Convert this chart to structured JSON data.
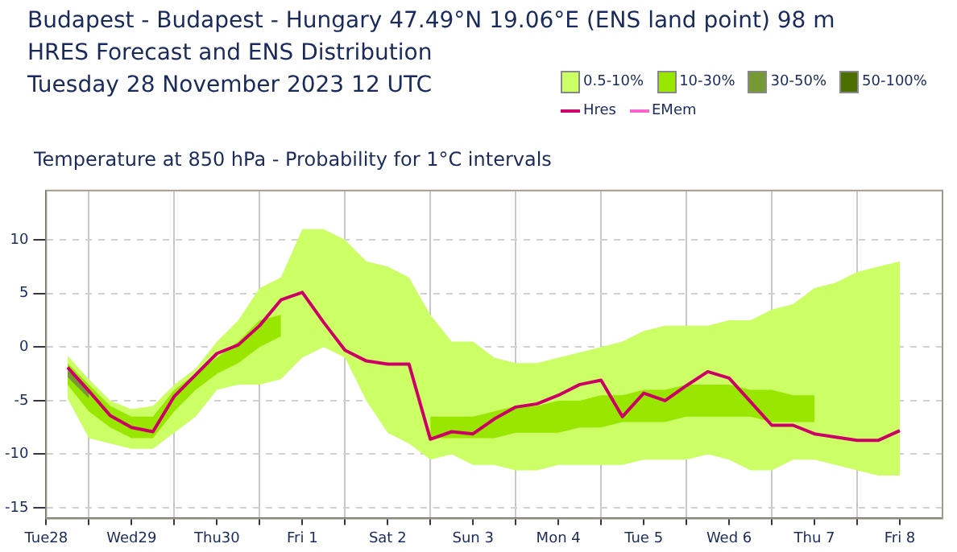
{
  "chart_data": {
    "type": "line",
    "title": "Budapest - Budapest - Hungary 47.49°N 19.06°E (ENS land point) 98 m\nHRES Forecast and ENS Distribution\nTuesday 28 November 2023 12 UTC",
    "subtitle": "Temperature at 850 hPa - Probability for 1°C intervals",
    "x": [
      "2023-11-28T18:00",
      "2023-11-29T00:00",
      "2023-11-29T06:00",
      "2023-11-29T12:00",
      "2023-11-29T18:00",
      "2023-11-30T00:00",
      "2023-11-30T06:00",
      "2023-11-30T12:00",
      "2023-11-30T18:00",
      "2023-12-01T00:00",
      "2023-12-01T06:00",
      "2023-12-01T12:00",
      "2023-12-01T18:00",
      "2023-12-02T00:00",
      "2023-12-02T06:00",
      "2023-12-02T12:00",
      "2023-12-02T18:00",
      "2023-12-03T00:00",
      "2023-12-03T06:00",
      "2023-12-03T12:00",
      "2023-12-03T18:00",
      "2023-12-04T00:00",
      "2023-12-04T06:00",
      "2023-12-04T12:00",
      "2023-12-04T18:00",
      "2023-12-05T00:00",
      "2023-12-05T06:00",
      "2023-12-05T12:00",
      "2023-12-05T18:00",
      "2023-12-06T00:00",
      "2023-12-06T06:00",
      "2023-12-06T12:00",
      "2023-12-06T18:00",
      "2023-12-07T00:00",
      "2023-12-07T06:00",
      "2023-12-07T12:00",
      "2023-12-07T18:00",
      "2023-12-08T00:00",
      "2023-12-08T06:00",
      "2023-12-08T12:00"
    ],
    "series": [
      {
        "name": "0.5-10%",
        "type": "area",
        "color": "#ccff66",
        "values": [
          null,
          null,
          null,
          null,
          null,
          null,
          null,
          null,
          null,
          null,
          null,
          null,
          null,
          null,
          null,
          null,
          null,
          null,
          null,
          null,
          null,
          null,
          null,
          null,
          null,
          null,
          null,
          null,
          null,
          null,
          null,
          null,
          null,
          null,
          null,
          null,
          null,
          null,
          null,
          null
        ],
        "upper": [
          -0.8,
          -3,
          -5,
          -5.8,
          -5.5,
          -3.5,
          -2,
          0.5,
          2.5,
          5.5,
          6.5,
          11,
          11,
          10,
          8,
          7.5,
          6.5,
          3,
          0.5,
          0.5,
          -1,
          -1.5,
          -1.5,
          -1,
          -0.5,
          0,
          0.5,
          1.5,
          2,
          2,
          2,
          2.5,
          2.5,
          3.5,
          4,
          5.5,
          6,
          7,
          7.5,
          8
        ],
        "lower": [
          -4.8,
          -8.5,
          -9,
          -9.5,
          -9.5,
          -8,
          -6.5,
          -4,
          -3.5,
          -3.5,
          -3,
          -1,
          0,
          -1,
          -5,
          -8,
          -9,
          -10.5,
          -10,
          -11,
          -11,
          -11.5,
          -11.5,
          -11,
          -11,
          -11,
          -11,
          -10.5,
          -10.5,
          -10.5,
          -10,
          -10.5,
          -11.5,
          -11.5,
          -10.5,
          -10.5,
          -11,
          -11.5,
          -12,
          -12
        ]
      },
      {
        "name": "10-30%",
        "type": "area",
        "color": "#99e600",
        "values": [
          null,
          null,
          null,
          null,
          null,
          null,
          null,
          null,
          null,
          null,
          null,
          null,
          null,
          null,
          null,
          null,
          null,
          null,
          null,
          null,
          null,
          null,
          null,
          null,
          null,
          null,
          null,
          null,
          null,
          null,
          null,
          null,
          null,
          null,
          null,
          null,
          null,
          null,
          null,
          null
        ],
        "upper": [
          -1.5,
          -3.5,
          -5.5,
          -6.5,
          -6.5,
          -4,
          -2.5,
          -1,
          0.5,
          2.5,
          3,
          null,
          null,
          null,
          null,
          null,
          null,
          -6.5,
          -6.5,
          -6.5,
          -6,
          -5.5,
          -5.5,
          -5,
          -5,
          -4.5,
          -4.5,
          -4,
          -4,
          -3.5,
          -3.5,
          -3.5,
          -4,
          -4,
          -4.5,
          -4.5,
          null,
          null,
          null,
          null
        ],
        "lower": [
          -3.5,
          -6,
          -7.5,
          -8.5,
          -8.5,
          -6,
          -4,
          -2.5,
          -1.5,
          0,
          1,
          null,
          null,
          null,
          null,
          null,
          null,
          -8.5,
          -8.5,
          -8.5,
          -8.5,
          -8,
          -8,
          -8,
          -7.5,
          -7.5,
          -7,
          -7,
          -7,
          -6.5,
          -6.5,
          -6.5,
          -6.5,
          -7,
          -7,
          -7,
          null,
          null,
          null,
          null
        ]
      },
      {
        "name": "30-50%",
        "type": "area",
        "color": "#779933",
        "values": [
          null,
          null,
          null,
          null,
          null,
          null,
          null,
          null,
          null,
          null,
          null,
          null,
          null,
          null,
          null,
          null,
          null,
          null,
          null,
          null,
          null,
          null,
          null,
          null,
          null,
          null,
          null,
          null,
          null,
          null,
          null,
          null,
          null,
          null,
          null,
          null,
          null,
          null,
          null,
          null
        ],
        "upper": [
          -2.2,
          -4,
          null,
          null,
          null,
          null,
          null,
          null,
          null,
          null,
          null,
          null,
          null,
          null,
          null,
          null,
          null,
          null,
          null,
          null,
          null,
          null,
          null,
          null,
          null,
          null,
          null,
          null,
          null,
          null,
          null,
          null,
          null,
          null,
          null,
          null,
          null,
          null,
          null,
          null
        ],
        "lower": [
          -2.8,
          -4.8,
          null,
          null,
          null,
          null,
          null,
          null,
          null,
          null,
          null,
          null,
          null,
          null,
          null,
          null,
          null,
          null,
          null,
          null,
          null,
          null,
          null,
          null,
          null,
          null,
          null,
          null,
          null,
          null,
          null,
          null,
          null,
          null,
          null,
          null,
          null,
          null,
          null,
          null
        ]
      },
      {
        "name": "50-100%",
        "type": "area",
        "color": "#4d6e00",
        "values": [
          null,
          null,
          null,
          null,
          null,
          null,
          null,
          null,
          null,
          null,
          null,
          null,
          null,
          null,
          null,
          null,
          null,
          null,
          null,
          null,
          null,
          null,
          null,
          null,
          null,
          null,
          null,
          null,
          null,
          null,
          null,
          null,
          null,
          null,
          null,
          null,
          null,
          null,
          null,
          null
        ]
      },
      {
        "name": "Hres",
        "color": "#cc0066",
        "line_style": "solid",
        "values": [
          -1.9,
          -4.1,
          -6.4,
          -7.5,
          -7.9,
          -4.6,
          -2.6,
          -0.6,
          0.2,
          2.0,
          4.4,
          5.1,
          2.3,
          -0.3,
          -1.3,
          -1.6,
          -1.6,
          -8.6,
          -7.9,
          -8.1,
          -6.7,
          -5.6,
          -5.3,
          -4.5,
          -3.5,
          -3.1,
          -6.5,
          -4.3,
          -5.0,
          -3.6,
          -2.3,
          -2.9,
          -5.1,
          -7.3,
          -7.3,
          -8.1,
          -8.4,
          -8.7,
          -8.7,
          -7.8
        ]
      },
      {
        "name": "EMem",
        "color": "#ff66cc",
        "line_style": "dashed",
        "values": [
          null,
          null,
          null,
          null,
          null,
          null,
          null,
          null,
          null,
          null,
          null,
          null,
          null,
          null,
          null,
          null,
          null,
          null,
          null,
          null,
          null,
          null,
          null,
          null,
          null,
          null,
          null,
          null,
          null,
          null,
          null,
          null,
          null,
          null,
          null,
          null,
          null,
          null,
          null,
          null
        ]
      }
    ],
    "xlim": [
      "2023-11-28T12:00",
      "2023-12-09T00:00"
    ],
    "xticks": [
      {
        "value": "2023-11-28T12:00",
        "label": "Tue28"
      },
      {
        "value": "2023-11-29T00:00",
        "label": null
      },
      {
        "value": "2023-11-29T12:00",
        "label": "Wed29"
      },
      {
        "value": "2023-11-30T00:00",
        "label": null
      },
      {
        "value": "2023-11-30T12:00",
        "label": "Thu30"
      },
      {
        "value": "2023-12-01T00:00",
        "label": null
      },
      {
        "value": "2023-12-01T12:00",
        "label": "Fri 1"
      },
      {
        "value": "2023-12-02T00:00",
        "label": null
      },
      {
        "value": "2023-12-02T12:00",
        "label": "Sat 2"
      },
      {
        "value": "2023-12-03T00:00",
        "label": null
      },
      {
        "value": "2023-12-03T12:00",
        "label": "Sun 3"
      },
      {
        "value": "2023-12-04T00:00",
        "label": null
      },
      {
        "value": "2023-12-04T12:00",
        "label": "Mon 4"
      },
      {
        "value": "2023-12-05T00:00",
        "label": null
      },
      {
        "value": "2023-12-05T12:00",
        "label": "Tue 5"
      },
      {
        "value": "2023-12-06T00:00",
        "label": null
      },
      {
        "value": "2023-12-06T12:00",
        "label": "Wed 6"
      },
      {
        "value": "2023-12-07T00:00",
        "label": null
      },
      {
        "value": "2023-12-07T12:00",
        "label": "Thu 7"
      },
      {
        "value": "2023-12-08T00:00",
        "label": null
      },
      {
        "value": "2023-12-08T12:00",
        "label": "Fri 8"
      }
    ],
    "ylim": [
      -16,
      14.6
    ],
    "yticks": [
      -15,
      -10,
      -5,
      0,
      5,
      10
    ],
    "grid": true,
    "legend": "top right"
  }
}
